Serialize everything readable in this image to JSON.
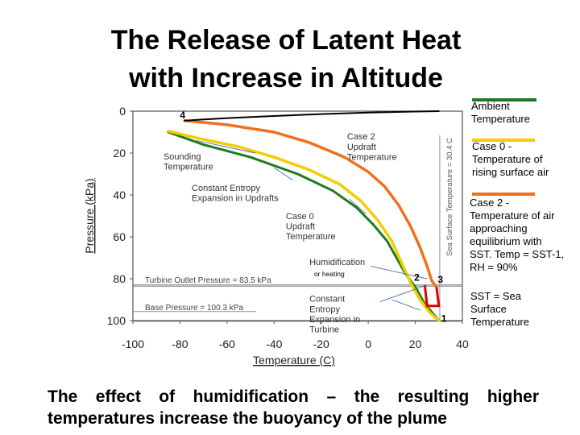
{
  "slide": {
    "title_line1": "The Release of Latent Heat",
    "title_line2": "with Increase in Altitude",
    "footer": "The effect of humidification – the resulting higher temperatures increase the buoyancy of the plume"
  },
  "legend": [
    {
      "color": "#1f7a1f",
      "text": "Ambient Temperature"
    },
    {
      "color": "#f5cc00",
      "text": "Case 0 - Temperature of rising surface air"
    },
    {
      "color": "#f07020",
      "text": "Case 2 - Temperature of air approaching equilibrium with SST. Temp = SST-1, RH = 90%"
    },
    {
      "color": "#c0c0c0",
      "text": "SST = Sea Surface Temperature"
    }
  ],
  "chart_data": {
    "type": "line",
    "xlabel": "Temperature (C)",
    "ylabel": "Pressure (kPa)",
    "xlim": [
      -100,
      40
    ],
    "ylim": [
      0,
      100
    ],
    "y_inverted": true,
    "x_ticks": [
      -100,
      -80,
      -60,
      -40,
      -20,
      0,
      20,
      40
    ],
    "y_ticks": [
      0,
      20,
      40,
      60,
      80,
      100
    ],
    "series": [
      {
        "color": "#1f7a1f",
        "points": [
          [
            -85,
            10
          ],
          [
            -70,
            16
          ],
          [
            -50,
            22
          ],
          [
            -30,
            30
          ],
          [
            -15,
            38
          ],
          [
            -5,
            46
          ],
          [
            2,
            54
          ],
          [
            8,
            62
          ],
          [
            12,
            70
          ],
          [
            16,
            78
          ],
          [
            20,
            84
          ],
          [
            24,
            92
          ],
          [
            30,
            100
          ]
        ]
      },
      {
        "color": "#f5cc00",
        "points": [
          [
            -85,
            9.5
          ],
          [
            -72,
            13
          ],
          [
            -55,
            17
          ],
          [
            -40,
            22
          ],
          [
            -25,
            28
          ],
          [
            -12,
            35
          ],
          [
            -3,
            43
          ],
          [
            4,
            52
          ],
          [
            10,
            62
          ],
          [
            14,
            72
          ],
          [
            18,
            82
          ],
          [
            22,
            90
          ],
          [
            26,
            96
          ],
          [
            30,
            100
          ]
        ]
      },
      {
        "color": "#f07020",
        "points": [
          [
            -78,
            4.5
          ],
          [
            -60,
            6.5
          ],
          [
            -40,
            10
          ],
          [
            -25,
            15
          ],
          [
            -10,
            22
          ],
          [
            0,
            29
          ],
          [
            7,
            36
          ],
          [
            13,
            45
          ],
          [
            18,
            55
          ],
          [
            22,
            65
          ],
          [
            25,
            74
          ],
          [
            27,
            81
          ],
          [
            29,
            84
          ]
        ]
      },
      {
        "color": "#000000",
        "points": [
          [
            -78,
            4.5
          ],
          [
            -60,
            3.3
          ],
          [
            -40,
            2.3
          ],
          [
            -20,
            1.4
          ],
          [
            0,
            0.7
          ],
          [
            20,
            0.2
          ],
          [
            30,
            0
          ]
        ]
      }
    ],
    "reference_lines": [
      {
        "orientation": "horizontal",
        "value": 83.5,
        "label": "Turbine Outlet Pressure = 83.5 kPa"
      },
      {
        "orientation": "horizontal",
        "value": 100.3,
        "label": "Base Pressure = 100.3 kPa"
      },
      {
        "orientation": "vertical",
        "value": 30.4,
        "label": "Sea Surface Temperature = 30.4 C"
      }
    ],
    "highlight_path": {
      "color": "#e00000",
      "points": [
        [
          24,
          83
        ],
        [
          25,
          93
        ],
        [
          30,
          93
        ],
        [
          29,
          84
        ]
      ]
    },
    "annotations": [
      {
        "text": "Case 2 Updraft Temperature",
        "x": -9,
        "y": 13.5
      },
      {
        "text": "Sounding Temperature",
        "x": -87,
        "y": 23
      },
      {
        "text": "Constant Entropy Expansion in Updrafts",
        "x": -75,
        "y": 38
      },
      {
        "text": "Case 0 Updraft Temperature",
        "x": -35,
        "y": 51.5
      },
      {
        "text": "Humidification",
        "x": -25,
        "y": 73.5
      },
      {
        "text": "or heating",
        "x": -23,
        "y": 78.8
      },
      {
        "text": "Constant Entropy Expansion in Turbine",
        "x": -25,
        "y": 91
      }
    ],
    "point_labels": [
      {
        "text": "1",
        "x": 31,
        "y": 100.5
      },
      {
        "text": "2",
        "x": 19.5,
        "y": 81
      },
      {
        "text": "3",
        "x": 29.5,
        "y": 82
      },
      {
        "text": "4",
        "x": -80,
        "y": 3.5
      }
    ]
  }
}
